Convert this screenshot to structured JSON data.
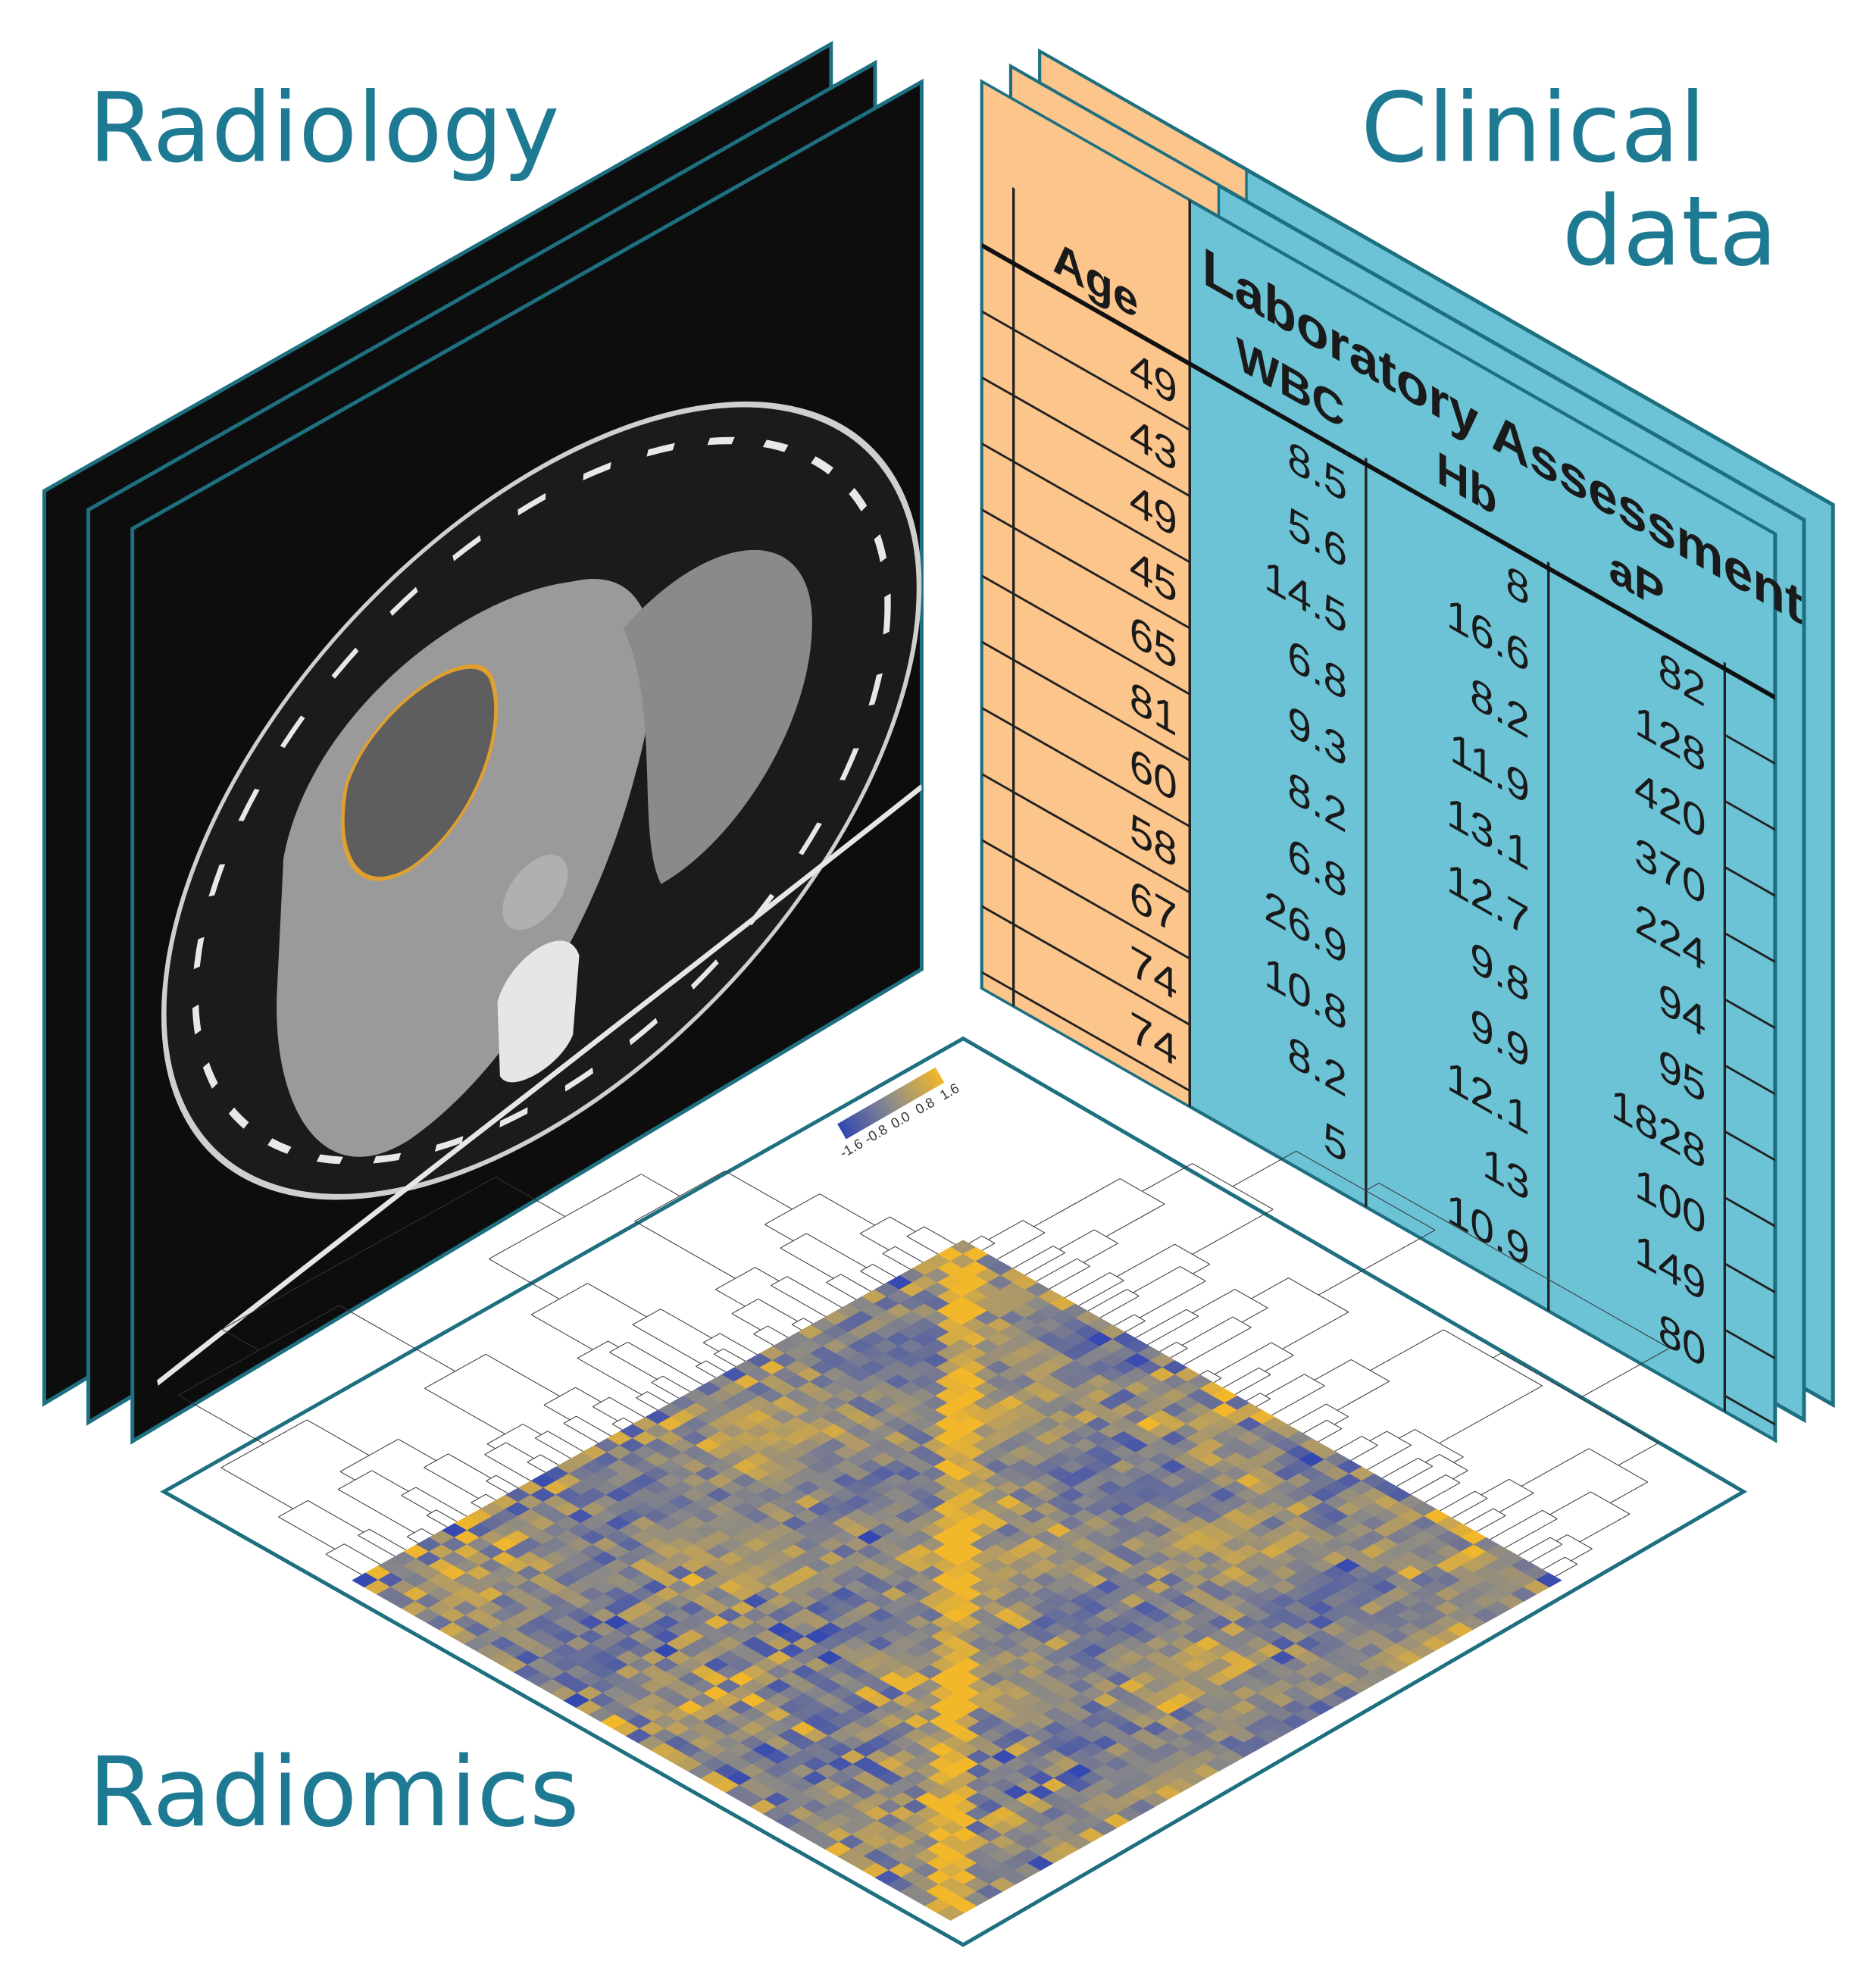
{
  "labels": {
    "radiology": "Radiology",
    "clinical": [
      "Clinical",
      "data"
    ],
    "radiomics": "Radiomics"
  },
  "table": {
    "headers": [
      "Age",
      "Laboratory Assessment",
      "WBC",
      "Hb",
      "aP"
    ],
    "columns": [
      [
        49,
        43,
        49,
        45,
        65,
        81,
        60,
        58,
        67,
        74,
        74
      ],
      [
        8.5,
        5.6,
        14.5,
        6.8,
        9.3,
        8.2,
        6.8,
        26.9,
        10.8,
        8.2,
        5
      ],
      [
        8,
        16.6,
        8.2,
        11.9,
        13.1,
        12.7,
        9.8,
        9.9,
        12.1,
        13,
        10.9
      ],
      [
        82,
        128,
        420,
        370,
        224,
        94,
        95,
        1828,
        100,
        149,
        80
      ]
    ]
  },
  "heatmap": {
    "legend": [
      "1.6",
      "0.8",
      "0.0",
      "-0.8",
      "-1.6"
    ]
  }
}
